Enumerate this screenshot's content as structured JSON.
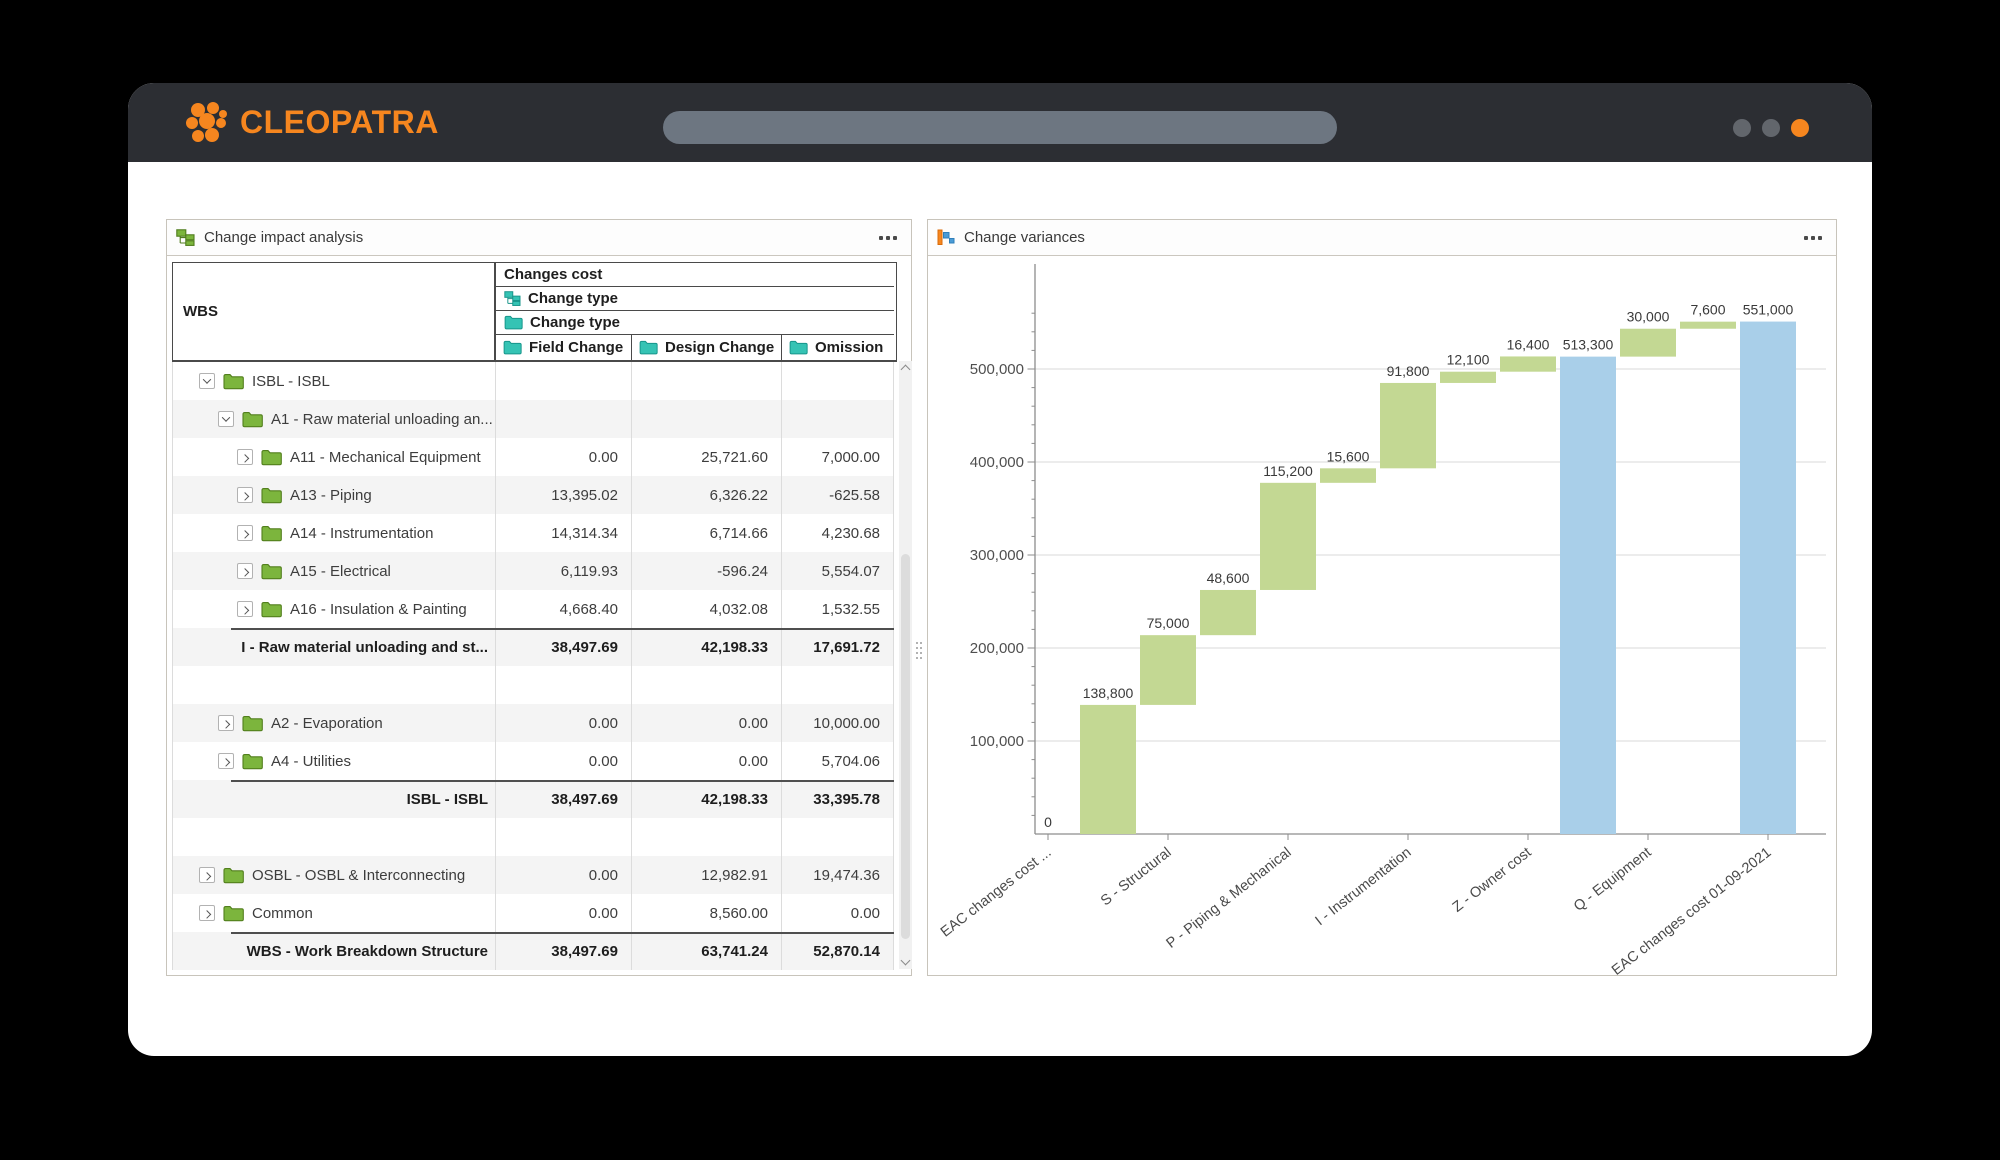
{
  "titlebar": {
    "brand": "CLEOPATRA"
  },
  "colors": {
    "accent_orange": "#f6861f",
    "titlebar_bg": "#2c2e33",
    "bar_delta_green": "#c3d893",
    "bar_total_blue": "#a9cfe9",
    "folder_green": "#7cb53d",
    "icon_teal": "#35c3b4"
  },
  "impact_panel": {
    "title": "Change impact analysis",
    "table": {
      "row_header": "WBS",
      "group_header": "Changes cost",
      "type_header_tree": "Change type",
      "type_header_folder": "Change type",
      "columns": [
        "Field Change",
        "Design Change",
        "Omission"
      ],
      "rows": [
        {
          "type": "data",
          "indent": 0,
          "toggle": "expanded",
          "label": "ISBL - ISBL",
          "values": [
            "",
            "",
            ""
          ]
        },
        {
          "type": "data",
          "indent": 1,
          "toggle": "expanded",
          "label": "A1 - Raw material unloading an...",
          "values": [
            "",
            "",
            ""
          ]
        },
        {
          "type": "data",
          "indent": 2,
          "toggle": "collapsed",
          "label": "A11 - Mechanical Equipment",
          "values": [
            "0.00",
            "25,721.60",
            "7,000.00"
          ]
        },
        {
          "type": "data",
          "indent": 2,
          "toggle": "collapsed",
          "label": "A13 - Piping",
          "values": [
            "13,395.02",
            "6,326.22",
            "-625.58"
          ]
        },
        {
          "type": "data",
          "indent": 2,
          "toggle": "collapsed",
          "label": "A14 - Instrumentation",
          "values": [
            "14,314.34",
            "6,714.66",
            "4,230.68"
          ]
        },
        {
          "type": "data",
          "indent": 2,
          "toggle": "collapsed",
          "label": "A15 - Electrical",
          "values": [
            "6,119.93",
            "-596.24",
            "5,554.07"
          ]
        },
        {
          "type": "data",
          "indent": 2,
          "toggle": "collapsed",
          "label": "A16 - Insulation & Painting",
          "values": [
            "4,668.40",
            "4,032.08",
            "1,532.55"
          ]
        },
        {
          "type": "subtotal",
          "label": "I - Raw material unloading and st...",
          "values": [
            "38,497.69",
            "42,198.33",
            "17,691.72"
          ]
        },
        {
          "type": "spacer",
          "label": "",
          "values": [
            "",
            "",
            ""
          ]
        },
        {
          "type": "data",
          "indent": 1,
          "toggle": "collapsed",
          "label": "A2 - Evaporation",
          "values": [
            "0.00",
            "0.00",
            "10,000.00"
          ]
        },
        {
          "type": "data",
          "indent": 1,
          "toggle": "collapsed",
          "label": "A4 - Utilities",
          "values": [
            "0.00",
            "0.00",
            "5,704.06"
          ]
        },
        {
          "type": "subtotal",
          "label": "ISBL - ISBL",
          "values": [
            "38,497.69",
            "42,198.33",
            "33,395.78"
          ]
        },
        {
          "type": "spacer",
          "label": "",
          "values": [
            "",
            "",
            ""
          ]
        },
        {
          "type": "data",
          "indent": 0,
          "toggle": "collapsed",
          "label": "OSBL - OSBL & Interconnecting",
          "values": [
            "0.00",
            "12,982.91",
            "19,474.36"
          ]
        },
        {
          "type": "data",
          "indent": 0,
          "toggle": "collapsed",
          "label": "Common",
          "values": [
            "0.00",
            "8,560.00",
            "0.00"
          ]
        },
        {
          "type": "subtotal",
          "label": "WBS - Work Breakdown Structure",
          "values": [
            "38,497.69",
            "63,741.24",
            "52,870.14"
          ]
        }
      ]
    }
  },
  "variances_panel": {
    "title": "Change variances"
  },
  "chart_data": {
    "type": "waterfall",
    "title": "Change variances",
    "ylim": [
      0,
      560000
    ],
    "y_major_step": 100000,
    "y_minor_step": 20000,
    "grid": true,
    "legend": "none",
    "colors": {
      "delta": "#c3d893",
      "total": "#a9cfe9"
    },
    "y_tick_labels": [
      "100,000",
      "200,000",
      "300,000",
      "400,000",
      "500,000"
    ],
    "bars": [
      {
        "label": "0",
        "start": 0,
        "end": 0,
        "kind": "delta",
        "axis_label": "EAC changes cost ..."
      },
      {
        "label": "138,800",
        "start": 0,
        "end": 138800,
        "kind": "delta",
        "axis_label": null
      },
      {
        "label": "75,000",
        "start": 138800,
        "end": 213800,
        "kind": "delta",
        "axis_label": "S - Structural"
      },
      {
        "label": "48,600",
        "start": 213800,
        "end": 262400,
        "kind": "delta",
        "axis_label": null
      },
      {
        "label": "115,200",
        "start": 262400,
        "end": 377600,
        "kind": "delta",
        "axis_label": "P - Piping & Mechanical"
      },
      {
        "label": "15,600",
        "start": 377600,
        "end": 393200,
        "kind": "delta",
        "axis_label": null
      },
      {
        "label": "91,800",
        "start": 393200,
        "end": 485000,
        "kind": "delta",
        "axis_label": "I - Instrumentation"
      },
      {
        "label": "12,100",
        "start": 485000,
        "end": 497100,
        "kind": "delta",
        "axis_label": null
      },
      {
        "label": "16,400",
        "start": 497100,
        "end": 513500,
        "kind": "delta",
        "axis_label": "Z - Owner cost"
      },
      {
        "label": "513,300",
        "start": 0,
        "end": 513300,
        "kind": "total",
        "axis_label": null
      },
      {
        "label": "30,000",
        "start": 513300,
        "end": 543300,
        "kind": "delta",
        "axis_label": "Q - Equipment"
      },
      {
        "label": "7,600",
        "start": 543300,
        "end": 550900,
        "kind": "delta",
        "axis_label": null
      },
      {
        "label": "551,000",
        "start": 0,
        "end": 551000,
        "kind": "total",
        "axis_label": "EAC changes cost 01-09-2021"
      }
    ]
  }
}
